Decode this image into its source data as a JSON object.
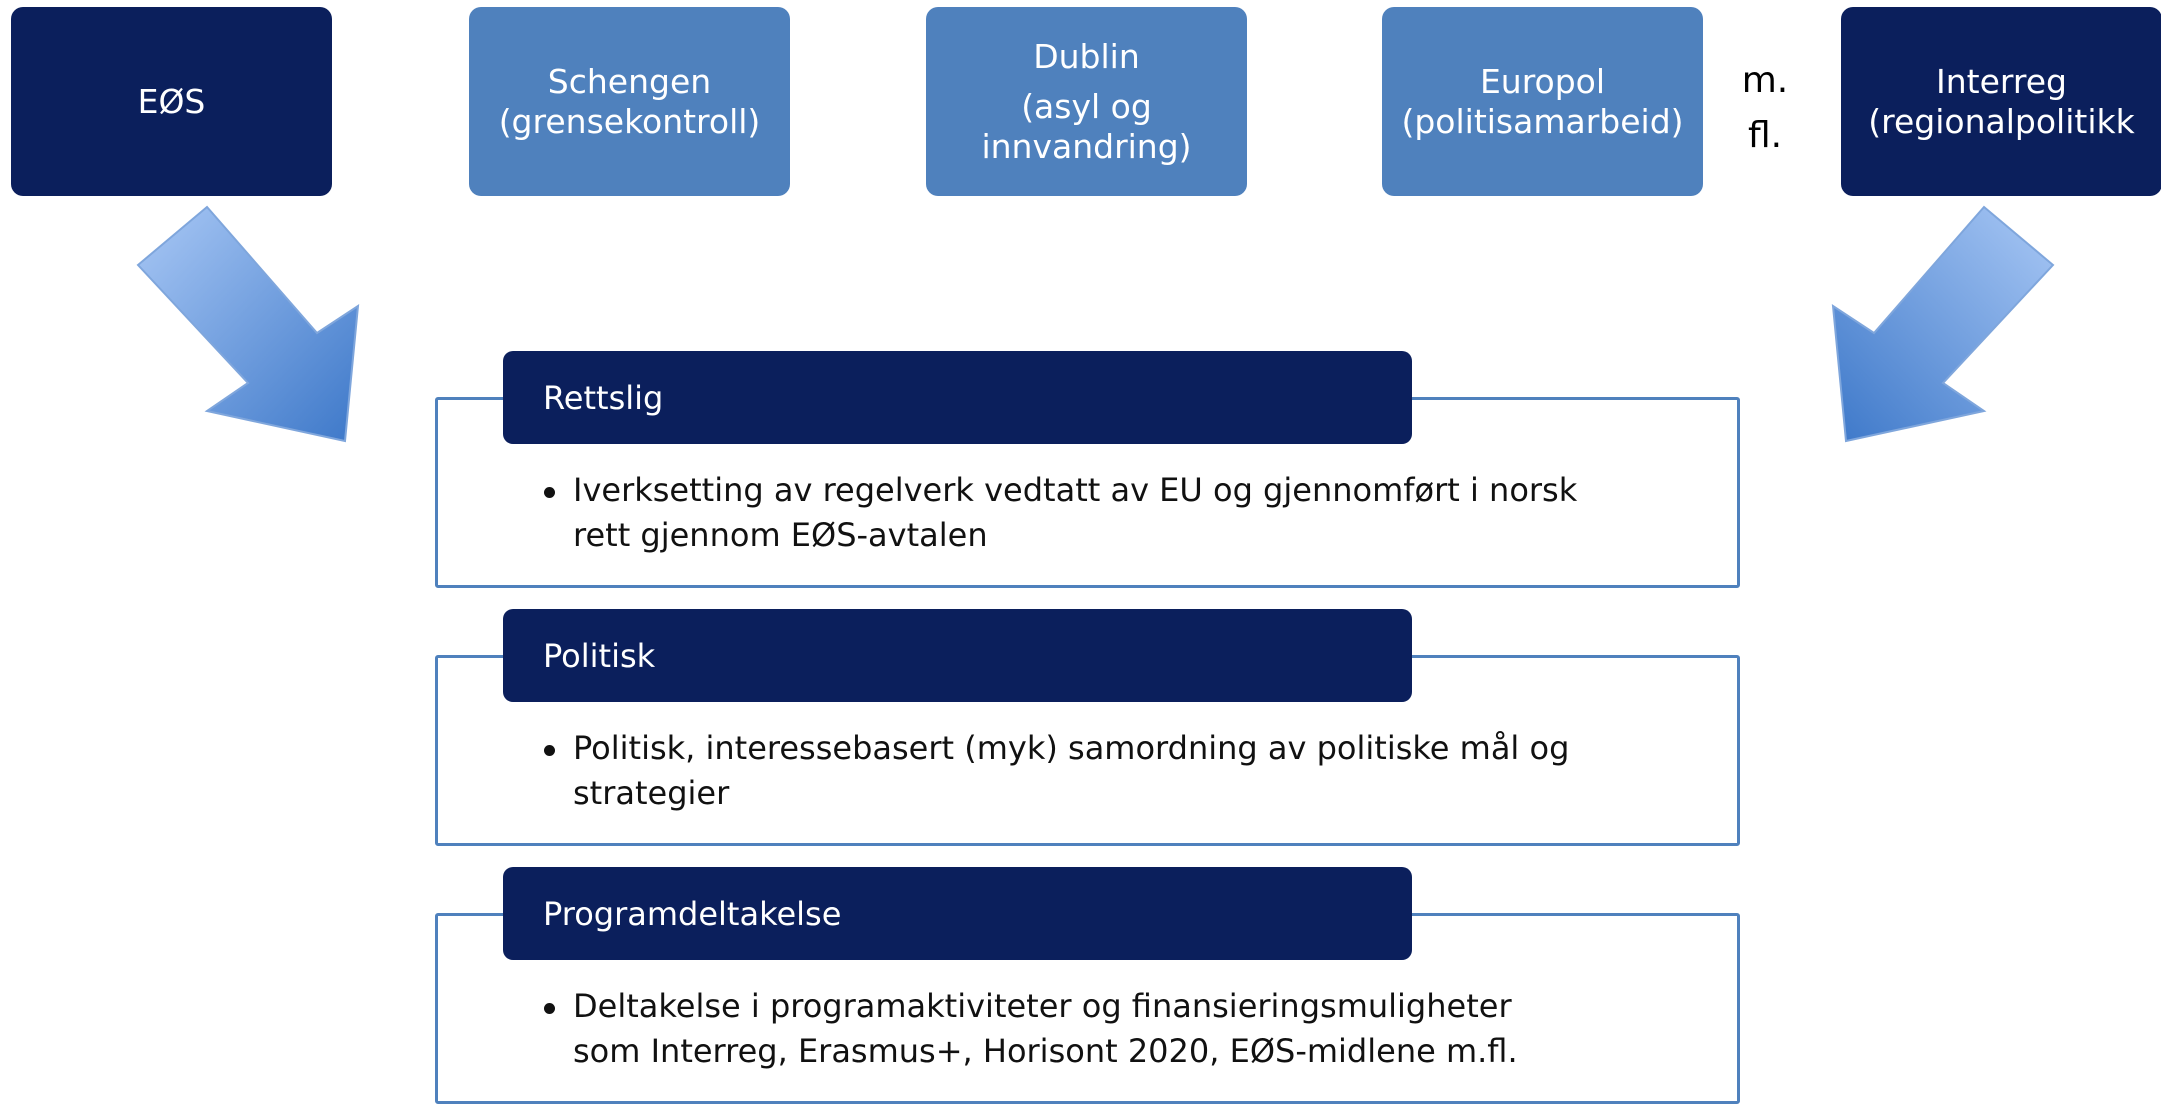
{
  "top_boxes": [
    {
      "lines": [
        "EØS"
      ],
      "style": "dark"
    },
    {
      "lines": [
        "Schengen",
        "(grensekontroll)"
      ],
      "style": "light"
    },
    {
      "lines": [
        "Dublin",
        "(asyl og",
        "innvandring)"
      ],
      "style": "light"
    },
    {
      "lines": [
        "Europol",
        "(politisamarbeid)"
      ],
      "style": "light"
    },
    {
      "lines": [
        "Interreg",
        "(regionalpolitikk"
      ],
      "style": "dark"
    }
  ],
  "more": [
    "m.",
    "fl."
  ],
  "sections": [
    {
      "title": "Rettslig",
      "bullet": [
        "Iverksetting av regelverk vedtatt av EU og gjennomført i norsk",
        "rett gjennom EØS-avtalen"
      ]
    },
    {
      "title": "Politisk",
      "bullet": [
        "Politisk, interessebasert (myk) samordning av politiske mål og",
        "strategier"
      ]
    },
    {
      "title": "Programdeltakelse",
      "bullet": [
        "Deltakelse i programaktiviteter og finansieringsmuligheter",
        "som Interreg, Erasmus+, Horisont 2020, EØS-midlene m.fl."
      ]
    }
  ]
}
